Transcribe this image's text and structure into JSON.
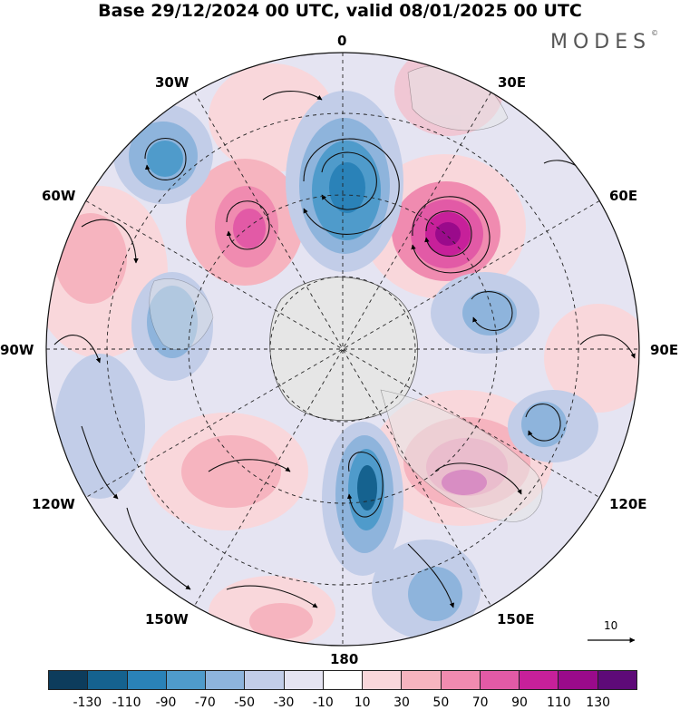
{
  "header": {
    "title": "Base 29/12/2024 00 UTC, valid 08/01/2025 00 UTC",
    "brand": "MODES",
    "brand_mark": "©"
  },
  "map": {
    "projection": "south-polar-stereographic",
    "meridian_labels": {
      "top": "0",
      "top_right": "30E",
      "upper_right": "60E",
      "right": "90E",
      "lower_right": "120E",
      "bottom_right": "150E",
      "bottom": "180",
      "bottom_left": "150W",
      "lower_left": "120W",
      "left": "90W",
      "upper_left": "60W",
      "top_left": "30W"
    },
    "reference_vector": {
      "label": "10",
      "icon": "arrow-right-icon"
    },
    "land_color": "#e6e6e6",
    "coastline_color": "#555555",
    "grid_color": "#222222"
  },
  "colorbar": {
    "colors": [
      "#0d3c5c",
      "#15628f",
      "#2a82b8",
      "#4f9bcb",
      "#8eb4dc",
      "#c2cde8",
      "#e5e4f2",
      "#ffffff",
      "#f9d7db",
      "#f6b4bf",
      "#f08bb0",
      "#e25aa6",
      "#c7209a",
      "#9a0a8b",
      "#5e0a78"
    ],
    "tick_labels": [
      "-130",
      "-110",
      "-90",
      "-70",
      "-50",
      "-30",
      "-10",
      "10",
      "30",
      "50",
      "70",
      "90",
      "110",
      "130"
    ]
  }
}
